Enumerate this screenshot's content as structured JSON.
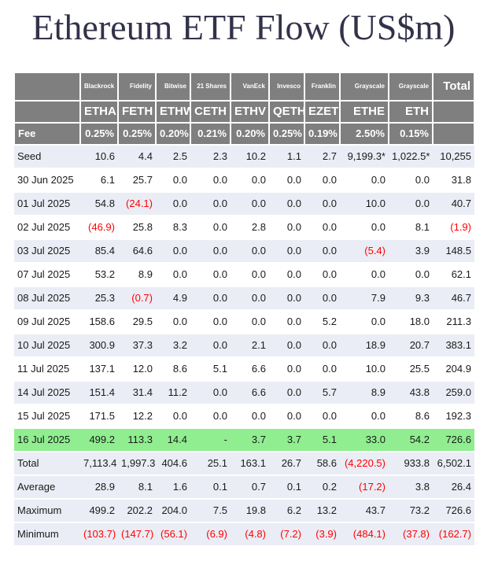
{
  "title": "Ethereum ETF Flow (US$m)",
  "colors": {
    "header_bg": "#7F7F7F",
    "header_text": "#FFFFFF",
    "stripe_bg": "#EAEDF5",
    "highlight_bg": "#90EE90",
    "negative_text": "#FF0000",
    "title_text": "#32324A",
    "body_text": "#1A1A1A"
  },
  "chart_data": {
    "type": "table",
    "title": "Ethereum ETF Flow (US$m)",
    "columns": {
      "issuers": [
        "Blackrock",
        "Fidelity",
        "Bitwise",
        "21 Shares",
        "VanEck",
        "Invesco",
        "Franklin",
        "Grayscale",
        "Grayscale"
      ],
      "tickers": [
        "ETHA",
        "FETH",
        "ETHW",
        "CETH",
        "ETHV",
        "QETH",
        "EZET",
        "ETHE",
        "ETH"
      ],
      "total_label": "Total",
      "fee_label": "Fee",
      "fees": [
        "0.25%",
        "0.25%",
        "0.20%",
        "0.21%",
        "0.20%",
        "0.25%",
        "0.19%",
        "2.50%",
        "0.15%"
      ]
    },
    "rows": [
      {
        "label": "Seed",
        "highlight": false,
        "values": [
          "10.6",
          "4.4",
          "2.5",
          "2.3",
          "10.2",
          "1.1",
          "2.7",
          "9,199.3*",
          "1,022.5*",
          "10,255"
        ]
      },
      {
        "label": "30 Jun 2025",
        "highlight": false,
        "values": [
          "6.1",
          "25.7",
          "0.0",
          "0.0",
          "0.0",
          "0.0",
          "0.0",
          "0.0",
          "0.0",
          "31.8"
        ]
      },
      {
        "label": "01 Jul 2025",
        "highlight": false,
        "values": [
          "54.8",
          "(24.1)",
          "0.0",
          "0.0",
          "0.0",
          "0.0",
          "0.0",
          "10.0",
          "0.0",
          "40.7"
        ]
      },
      {
        "label": "02 Jul 2025",
        "highlight": false,
        "values": [
          "(46.9)",
          "25.8",
          "8.3",
          "0.0",
          "2.8",
          "0.0",
          "0.0",
          "0.0",
          "8.1",
          "(1.9)"
        ]
      },
      {
        "label": "03 Jul 2025",
        "highlight": false,
        "values": [
          "85.4",
          "64.6",
          "0.0",
          "0.0",
          "0.0",
          "0.0",
          "0.0",
          "(5.4)",
          "3.9",
          "148.5"
        ]
      },
      {
        "label": "07 Jul 2025",
        "highlight": false,
        "values": [
          "53.2",
          "8.9",
          "0.0",
          "0.0",
          "0.0",
          "0.0",
          "0.0",
          "0.0",
          "0.0",
          "62.1"
        ]
      },
      {
        "label": "08 Jul 2025",
        "highlight": false,
        "values": [
          "25.3",
          "(0.7)",
          "4.9",
          "0.0",
          "0.0",
          "0.0",
          "0.0",
          "7.9",
          "9.3",
          "46.7"
        ]
      },
      {
        "label": "09 Jul 2025",
        "highlight": false,
        "values": [
          "158.6",
          "29.5",
          "0.0",
          "0.0",
          "0.0",
          "0.0",
          "5.2",
          "0.0",
          "18.0",
          "211.3"
        ]
      },
      {
        "label": "10 Jul 2025",
        "highlight": false,
        "values": [
          "300.9",
          "37.3",
          "3.2",
          "0.0",
          "2.1",
          "0.0",
          "0.0",
          "18.9",
          "20.7",
          "383.1"
        ]
      },
      {
        "label": "11 Jul 2025",
        "highlight": false,
        "values": [
          "137.1",
          "12.0",
          "8.6",
          "5.1",
          "6.6",
          "0.0",
          "0.0",
          "10.0",
          "25.5",
          "204.9"
        ]
      },
      {
        "label": "14 Jul 2025",
        "highlight": false,
        "values": [
          "151.4",
          "31.4",
          "11.2",
          "0.0",
          "6.6",
          "0.0",
          "5.7",
          "8.9",
          "43.8",
          "259.0"
        ]
      },
      {
        "label": "15 Jul 2025",
        "highlight": false,
        "values": [
          "171.5",
          "12.2",
          "0.0",
          "0.0",
          "0.0",
          "0.0",
          "0.0",
          "0.0",
          "8.6",
          "192.3"
        ]
      },
      {
        "label": "16 Jul 2025",
        "highlight": true,
        "values": [
          "499.2",
          "113.3",
          "14.4",
          "-",
          "3.7",
          "3.7",
          "5.1",
          "33.0",
          "54.2",
          "726.6"
        ]
      }
    ],
    "summary": [
      {
        "label": "Total",
        "values": [
          "7,113.4",
          "1,997.3",
          "404.6",
          "25.1",
          "163.1",
          "26.7",
          "58.6",
          "(4,220.5)",
          "933.8",
          "6,502.1"
        ]
      },
      {
        "label": "Average",
        "values": [
          "28.9",
          "8.1",
          "1.6",
          "0.1",
          "0.7",
          "0.1",
          "0.2",
          "(17.2)",
          "3.8",
          "26.4"
        ]
      },
      {
        "label": "Maximum",
        "values": [
          "499.2",
          "202.2",
          "204.0",
          "7.5",
          "19.8",
          "6.2",
          "13.2",
          "43.7",
          "73.2",
          "726.6"
        ]
      },
      {
        "label": "Minimum",
        "values": [
          "(103.7)",
          "(147.7)",
          "(56.1)",
          "(6.9)",
          "(4.8)",
          "(7.2)",
          "(3.9)",
          "(484.1)",
          "(37.8)",
          "(162.7)"
        ]
      }
    ]
  }
}
